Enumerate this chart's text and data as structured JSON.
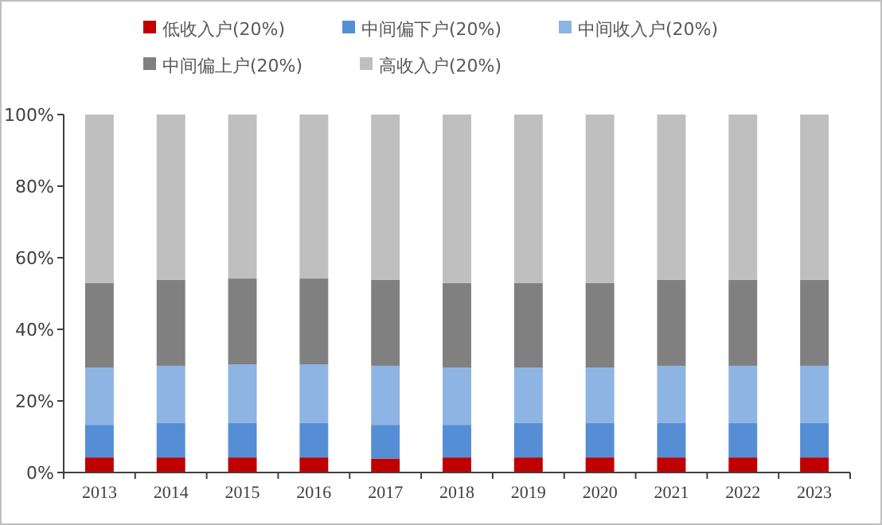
{
  "chart_data": {
    "type": "bar",
    "stacked": true,
    "legend": "top",
    "grid": false,
    "categories": [
      "2013",
      "2014",
      "2015",
      "2016",
      "2017",
      "2018",
      "2019",
      "2020",
      "2021",
      "2022",
      "2023"
    ],
    "ylim": [
      0,
      100
    ],
    "yticks": [
      {
        "value": 0,
        "label": "0%"
      },
      {
        "value": 20,
        "label": "20%"
      },
      {
        "value": 40,
        "label": "40%"
      },
      {
        "value": 60,
        "label": "60%"
      },
      {
        "value": 80,
        "label": "80%"
      },
      {
        "value": 100,
        "label": "100%"
      }
    ],
    "series": [
      {
        "name": "低收入户(20%)",
        "color": "#c00000",
        "values": [
          4.2,
          4.2,
          4.2,
          4.2,
          3.9,
          4.2,
          4.2,
          4.2,
          4.2,
          4.2,
          4.2
        ]
      },
      {
        "name": "中间偏下户(20%)",
        "color": "#558ed5",
        "values": [
          9.1,
          9.6,
          9.6,
          9.6,
          9.4,
          9.1,
          9.6,
          9.6,
          9.6,
          9.6,
          9.6
        ]
      },
      {
        "name": "中间收入户(20%)",
        "color": "#8db4e2",
        "values": [
          16.0,
          16.0,
          16.4,
          16.4,
          16.5,
          16.0,
          15.5,
          15.5,
          16.0,
          16.0,
          16.0
        ]
      },
      {
        "name": "中间偏上户(20%)",
        "color": "#808080",
        "values": [
          23.6,
          24.0,
          24.0,
          24.0,
          24.0,
          23.6,
          23.6,
          23.6,
          24.0,
          24.0,
          24.0
        ]
      },
      {
        "name": "高收入户(20%)",
        "color": "#bfbfbf",
        "values": [
          47.1,
          46.2,
          45.8,
          45.8,
          46.2,
          47.1,
          47.1,
          47.1,
          46.2,
          46.2,
          46.2
        ]
      }
    ]
  }
}
